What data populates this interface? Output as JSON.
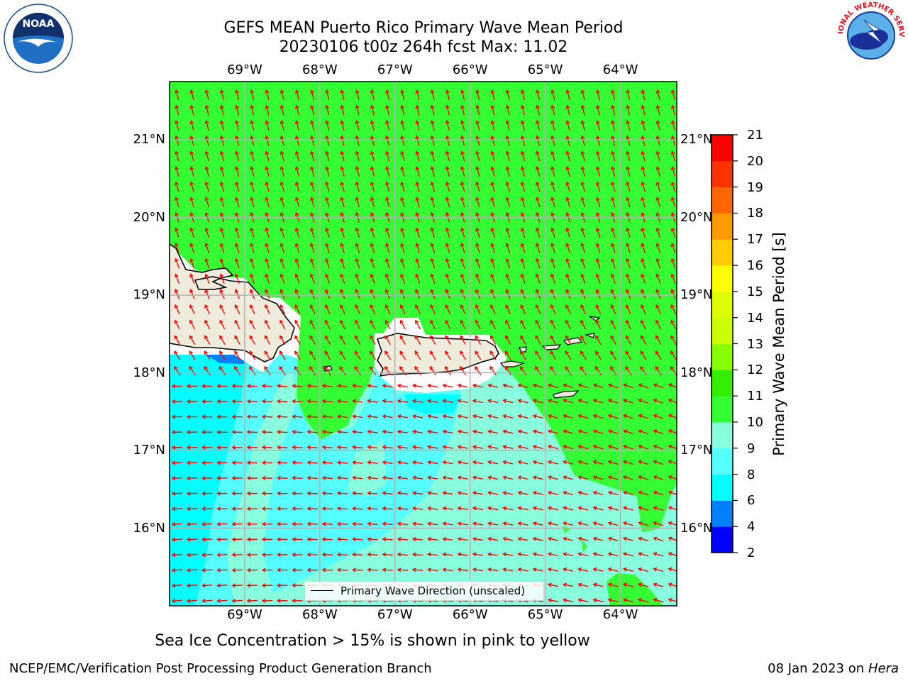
{
  "header": {
    "title_line1": "GEFS MEAN Puerto Rico Primary Wave Mean Period",
    "title_line2": "20230106 t00z 264h fcst   Max: 11.02"
  },
  "logos": {
    "left": {
      "icon": "noaa-logo",
      "text": "NOAA"
    },
    "right": {
      "icon": "nws-logo",
      "text": "NATIONAL WEATHER SERVICE"
    }
  },
  "map": {
    "lon_labels": [
      "69°W",
      "68°W",
      "67°W",
      "66°W",
      "65°W",
      "64°W"
    ],
    "lat_labels": [
      "21°N",
      "20°N",
      "19°N",
      "18°N",
      "17°N",
      "16°N"
    ],
    "lon_values": [
      -69,
      -68,
      -67,
      -66,
      -65,
      -64
    ],
    "lat_values": [
      21,
      20,
      19,
      18,
      17,
      16
    ],
    "extent": {
      "lon_min": -70,
      "lon_max": -63.25,
      "lat_min": 15,
      "lat_max": 21.75
    },
    "legend_label": "Primary Wave Direction (unscaled)",
    "colors": {
      "land": "#efecdc",
      "coast": "#000000",
      "arrow": "#ff0000",
      "grid": "#b0b0b0"
    }
  },
  "colorbar": {
    "label": "Primary Wave Mean Period [s]",
    "ticks": [
      "2",
      "4",
      "6",
      "8",
      "9",
      "10",
      "11",
      "12",
      "13",
      "14",
      "15",
      "16",
      "17",
      "18",
      "19",
      "20",
      "21"
    ],
    "colors": [
      "#0000ff",
      "#0080ff",
      "#00ffff",
      "#55ffff",
      "#88ffdd",
      "#33ff33",
      "#33ee00",
      "#88ff00",
      "#ccff00",
      "#ddff00",
      "#ffff00",
      "#ffcc00",
      "#ff9900",
      "#ff6600",
      "#ff3300",
      "#ff0000"
    ]
  },
  "footer": {
    "ice_note": "Sea Ice Concentration > 15% is shown in pink to yellow",
    "left": "NCEP/EMC/Verification Post Processing Product Generation Branch",
    "right_date": "08 Jan 2023 on",
    "right_host": "Hera"
  }
}
